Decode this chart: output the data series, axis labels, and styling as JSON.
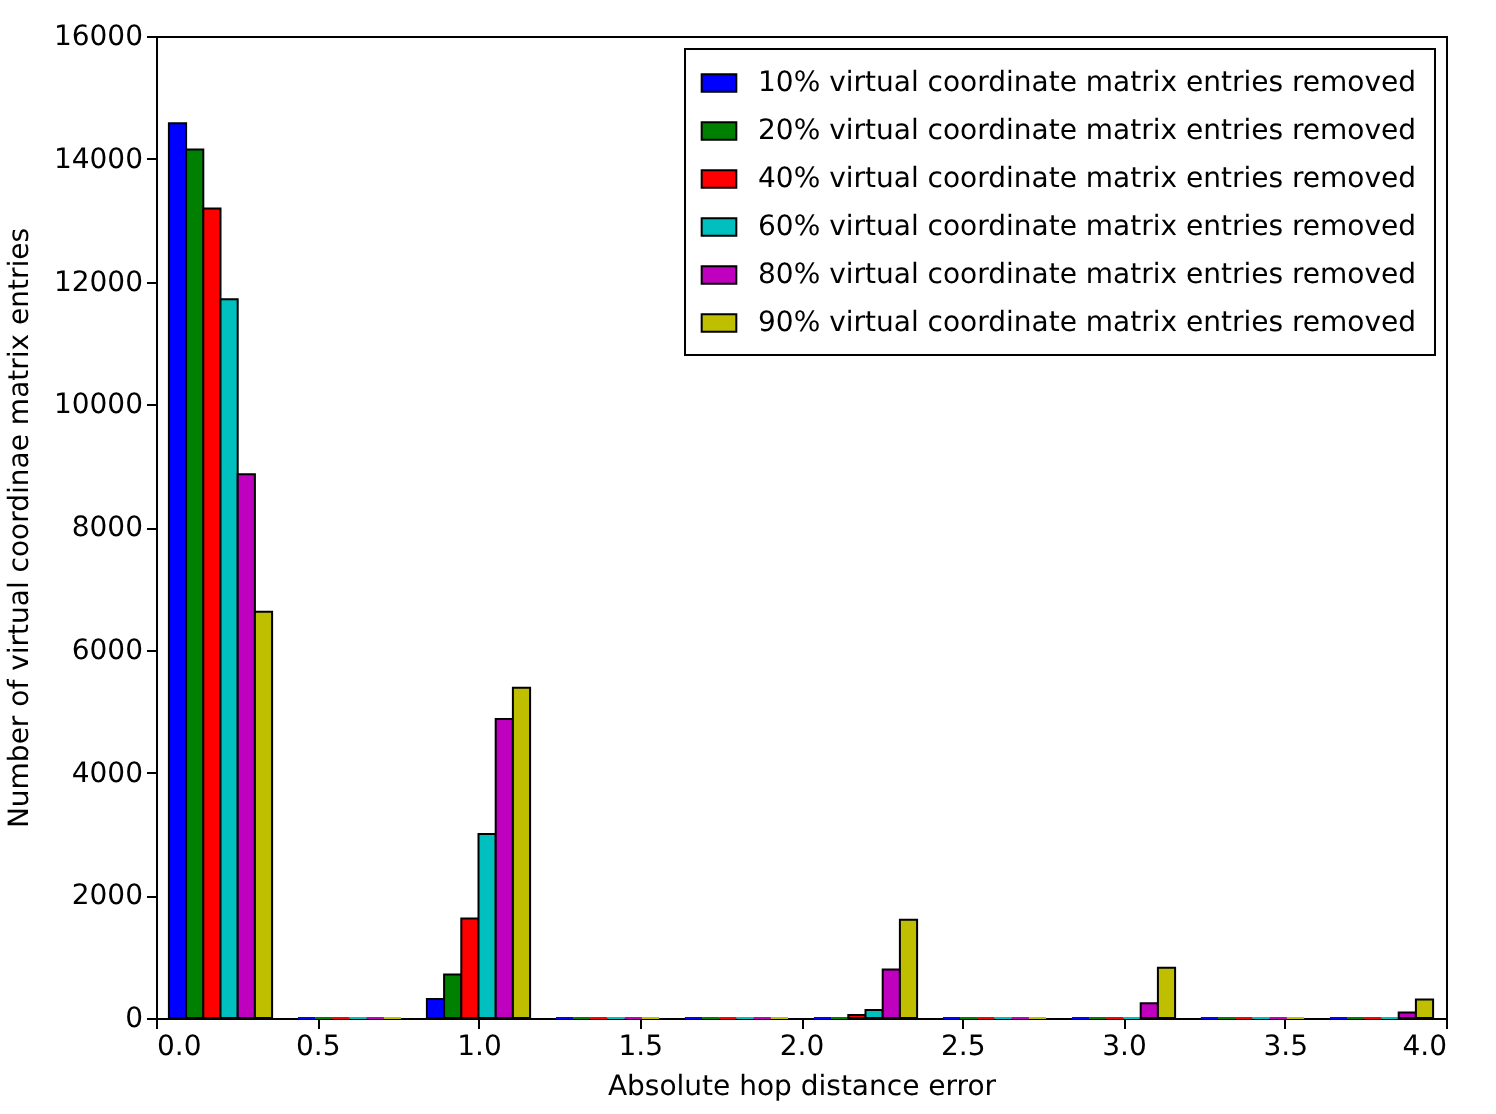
{
  "chart_data": {
    "type": "histogram",
    "xlabel": "Absolute hop distance error",
    "ylabel": "Number of virtual coordinae matrix entries",
    "bins": [
      0,
      0.4,
      0.8,
      1.2,
      1.6,
      2.0,
      2.4,
      2.8,
      3.2,
      3.6,
      4.0
    ],
    "series": [
      {
        "name": "10% virtual coordinate matrix entries removed",
        "color": "#0000ff",
        "values": [
          14580,
          0,
          310,
          0,
          0,
          0,
          0,
          0,
          0,
          0
        ]
      },
      {
        "name": "20% virtual coordinate matrix entries removed",
        "color": "#008000",
        "values": [
          14150,
          0,
          710,
          0,
          0,
          0,
          0,
          0,
          0,
          0
        ]
      },
      {
        "name": "40% virtual coordinate matrix entries removed",
        "color": "#ff0000",
        "values": [
          13190,
          0,
          1620,
          0,
          0,
          50,
          0,
          0,
          0,
          0
        ]
      },
      {
        "name": "60% virtual coordinate matrix entries removed",
        "color": "#00bfbf",
        "values": [
          11710,
          0,
          3000,
          0,
          0,
          130,
          0,
          0,
          0,
          0
        ]
      },
      {
        "name": "80% virtual coordinate matrix entries removed",
        "color": "#bf00bf",
        "values": [
          8860,
          0,
          4870,
          0,
          0,
          790,
          0,
          240,
          0,
          90
        ]
      },
      {
        "name": "90% virtual coordinate matrix entries removed",
        "color": "#bfbf00",
        "values": [
          6620,
          0,
          5380,
          0,
          0,
          1600,
          0,
          820,
          0,
          300
        ]
      }
    ],
    "xlim": [
      0,
      4.0
    ],
    "xticks": [
      {
        "value": 0,
        "label": "0.0"
      },
      {
        "value": 0.5,
        "label": "0.5"
      },
      {
        "value": 1.0,
        "label": "1.0"
      },
      {
        "value": 1.5,
        "label": "1.5"
      },
      {
        "value": 2.0,
        "label": "2.0"
      },
      {
        "value": 2.5,
        "label": "2.5"
      },
      {
        "value": 3.0,
        "label": "3.0"
      },
      {
        "value": 3.5,
        "label": "3.5"
      },
      {
        "value": 4.0,
        "label": "4.0"
      }
    ],
    "ylim": [
      0,
      16000
    ],
    "yticks": [
      0,
      2000,
      4000,
      6000,
      8000,
      10000,
      12000,
      14000,
      16000
    ],
    "grid": false,
    "legend": "top right"
  }
}
